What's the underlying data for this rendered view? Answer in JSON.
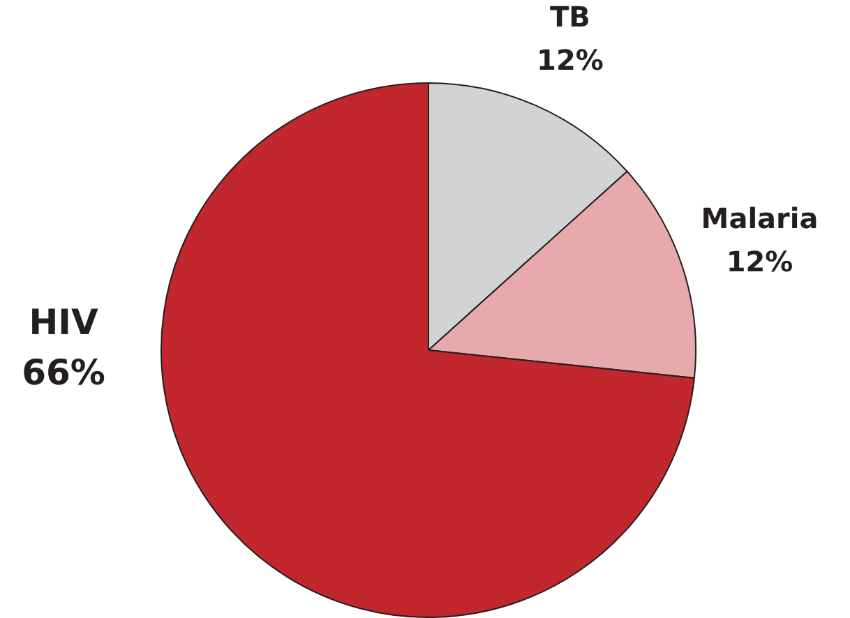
{
  "chart_data": {
    "type": "pie",
    "categories": [
      "TB",
      "Malaria",
      "HIV"
    ],
    "values": [
      12,
      12,
      66
    ],
    "value_labels": [
      "12%",
      "12%",
      "66%"
    ],
    "colors": [
      "#d1d3d4",
      "#e8a9ad",
      "#c1272d"
    ],
    "legend": false
  }
}
